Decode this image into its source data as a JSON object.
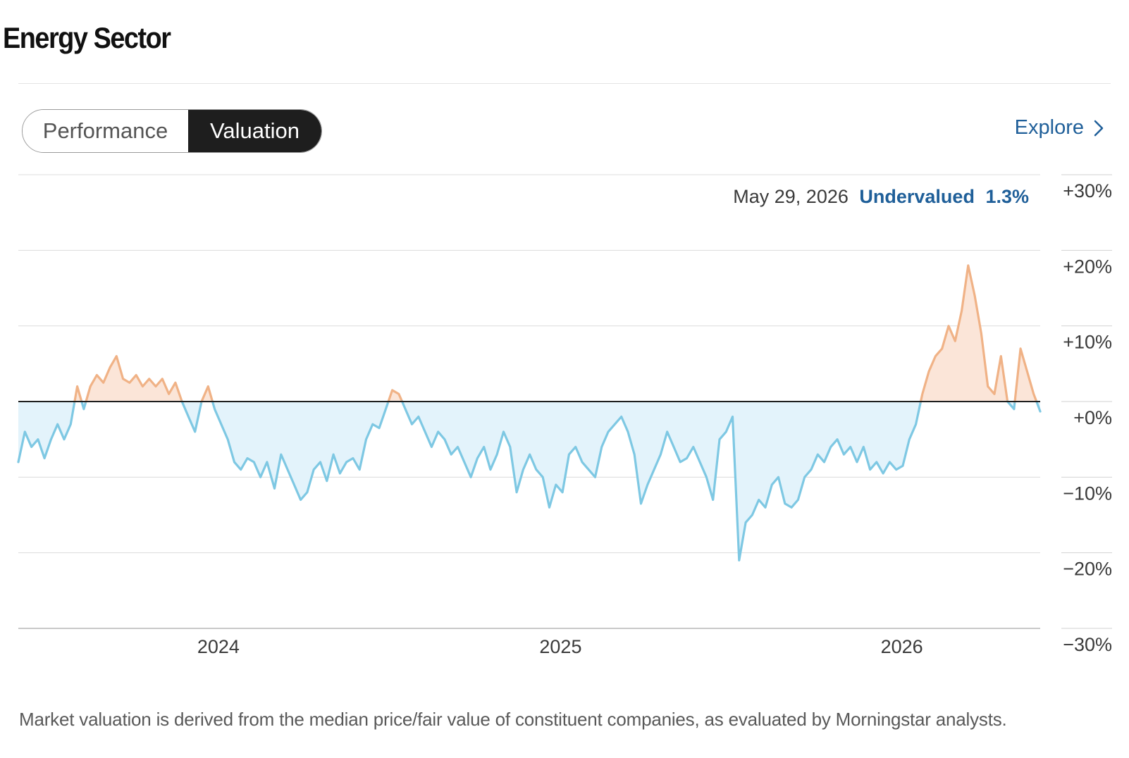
{
  "page": {
    "title": "Energy Sector",
    "tabs": [
      {
        "label": "Performance",
        "active": false
      },
      {
        "label": "Valuation",
        "active": true
      }
    ],
    "explore_label": "Explore",
    "footnote": "Market valuation is derived from the median price/fair value of constituent companies, as evaluated by Morningstar analysts.",
    "colors": {
      "accent": "#1f5f99",
      "undervalued_line": "#7ec8e3",
      "undervalued_fill": "#e3f3fb",
      "overvalued_line": "#f0b286",
      "overvalued_fill": "#fbe5d8",
      "toggle_active_bg": "#1e1e1e"
    }
  },
  "chart_data": {
    "type": "area",
    "y_tick_labels": [
      "+30%",
      "+20%",
      "+10%",
      "+0%",
      "−10%",
      "−20%",
      "−30%"
    ],
    "y_ticks": [
      30,
      20,
      10,
      0,
      -10,
      -20,
      -30
    ],
    "ylim": [
      -30,
      30
    ],
    "x_tick_labels": [
      "2024",
      "2025",
      "2026"
    ],
    "x_tick_dates": [
      "2024-01-01",
      "2025-01-01",
      "2026-01-01"
    ],
    "xlim": [
      "2023-06-01",
      "2026-05-29"
    ],
    "grid": true,
    "baseline": 0,
    "annotation": {
      "date_label": "May 29, 2026",
      "status_label": "Undervalued",
      "value_label": "1.3%"
    },
    "series": [
      {
        "values": [
          [
            "2023-06-01",
            -8
          ],
          [
            "2023-06-08",
            -4
          ],
          [
            "2023-06-15",
            -6
          ],
          [
            "2023-06-22",
            -5
          ],
          [
            "2023-06-29",
            -7.5
          ],
          [
            "2023-07-06",
            -5
          ],
          [
            "2023-07-13",
            -3
          ],
          [
            "2023-07-20",
            -5
          ],
          [
            "2023-07-27",
            -3
          ],
          [
            "2023-08-03",
            2
          ],
          [
            "2023-08-10",
            -1
          ],
          [
            "2023-08-17",
            2
          ],
          [
            "2023-08-24",
            3.5
          ],
          [
            "2023-08-31",
            2.5
          ],
          [
            "2023-09-07",
            4.5
          ],
          [
            "2023-09-14",
            6
          ],
          [
            "2023-09-21",
            3
          ],
          [
            "2023-09-28",
            2.5
          ],
          [
            "2023-10-05",
            3.5
          ],
          [
            "2023-10-12",
            2
          ],
          [
            "2023-10-19",
            3
          ],
          [
            "2023-10-26",
            2
          ],
          [
            "2023-11-02",
            3
          ],
          [
            "2023-11-09",
            1
          ],
          [
            "2023-11-16",
            2.5
          ],
          [
            "2023-11-23",
            0
          ],
          [
            "2023-11-30",
            -2
          ],
          [
            "2023-12-07",
            -4
          ],
          [
            "2023-12-14",
            0
          ],
          [
            "2023-12-21",
            2
          ],
          [
            "2023-12-28",
            -1
          ],
          [
            "2024-01-04",
            -3
          ],
          [
            "2024-01-11",
            -5
          ],
          [
            "2024-01-18",
            -8
          ],
          [
            "2024-01-25",
            -9
          ],
          [
            "2024-02-01",
            -7.5
          ],
          [
            "2024-02-08",
            -8
          ],
          [
            "2024-02-15",
            -10
          ],
          [
            "2024-02-22",
            -8
          ],
          [
            "2024-03-01",
            -11.5
          ],
          [
            "2024-03-08",
            -7
          ],
          [
            "2024-03-15",
            -9
          ],
          [
            "2024-03-22",
            -11
          ],
          [
            "2024-03-29",
            -13
          ],
          [
            "2024-04-05",
            -12
          ],
          [
            "2024-04-12",
            -9
          ],
          [
            "2024-04-19",
            -8
          ],
          [
            "2024-04-26",
            -10.5
          ],
          [
            "2024-05-03",
            -7
          ],
          [
            "2024-05-10",
            -9.5
          ],
          [
            "2024-05-17",
            -8
          ],
          [
            "2024-05-24",
            -7.5
          ],
          [
            "2024-05-31",
            -9
          ],
          [
            "2024-06-07",
            -5
          ],
          [
            "2024-06-14",
            -3
          ],
          [
            "2024-06-21",
            -3.5
          ],
          [
            "2024-06-28",
            -1
          ],
          [
            "2024-07-05",
            1.5
          ],
          [
            "2024-07-12",
            1
          ],
          [
            "2024-07-19",
            -1
          ],
          [
            "2024-07-26",
            -3
          ],
          [
            "2024-08-02",
            -2
          ],
          [
            "2024-08-09",
            -4
          ],
          [
            "2024-08-16",
            -6
          ],
          [
            "2024-08-23",
            -4
          ],
          [
            "2024-08-30",
            -5
          ],
          [
            "2024-09-06",
            -7
          ],
          [
            "2024-09-13",
            -6
          ],
          [
            "2024-09-20",
            -8
          ],
          [
            "2024-09-27",
            -10
          ],
          [
            "2024-10-04",
            -7.5
          ],
          [
            "2024-10-11",
            -6
          ],
          [
            "2024-10-18",
            -9
          ],
          [
            "2024-10-25",
            -7
          ],
          [
            "2024-11-01",
            -4
          ],
          [
            "2024-11-08",
            -6
          ],
          [
            "2024-11-15",
            -12
          ],
          [
            "2024-11-22",
            -9
          ],
          [
            "2024-11-29",
            -7
          ],
          [
            "2024-12-06",
            -9
          ],
          [
            "2024-12-13",
            -10
          ],
          [
            "2024-12-20",
            -14
          ],
          [
            "2024-12-27",
            -11
          ],
          [
            "2025-01-03",
            -12
          ],
          [
            "2025-01-10",
            -7
          ],
          [
            "2025-01-17",
            -6
          ],
          [
            "2025-01-24",
            -8
          ],
          [
            "2025-01-31",
            -9
          ],
          [
            "2025-02-07",
            -10
          ],
          [
            "2025-02-14",
            -6
          ],
          [
            "2025-02-21",
            -4
          ],
          [
            "2025-02-28",
            -3
          ],
          [
            "2025-03-07",
            -2
          ],
          [
            "2025-03-14",
            -4
          ],
          [
            "2025-03-21",
            -7
          ],
          [
            "2025-03-28",
            -13.5
          ],
          [
            "2025-04-04",
            -11
          ],
          [
            "2025-04-11",
            -9
          ],
          [
            "2025-04-18",
            -7
          ],
          [
            "2025-04-25",
            -4
          ],
          [
            "2025-05-02",
            -6
          ],
          [
            "2025-05-09",
            -8
          ],
          [
            "2025-05-16",
            -7.5
          ],
          [
            "2025-05-23",
            -6
          ],
          [
            "2025-05-30",
            -8
          ],
          [
            "2025-06-06",
            -10
          ],
          [
            "2025-06-13",
            -13
          ],
          [
            "2025-06-20",
            -5
          ],
          [
            "2025-06-27",
            -4
          ],
          [
            "2025-07-04",
            -2
          ],
          [
            "2025-07-11",
            -21
          ],
          [
            "2025-07-18",
            -16
          ],
          [
            "2025-07-25",
            -15
          ],
          [
            "2025-08-01",
            -13
          ],
          [
            "2025-08-08",
            -14
          ],
          [
            "2025-08-15",
            -11
          ],
          [
            "2025-08-22",
            -10
          ],
          [
            "2025-08-29",
            -13.5
          ],
          [
            "2025-09-05",
            -14
          ],
          [
            "2025-09-12",
            -13
          ],
          [
            "2025-09-19",
            -10
          ],
          [
            "2025-09-26",
            -9
          ],
          [
            "2025-10-03",
            -7
          ],
          [
            "2025-10-10",
            -8
          ],
          [
            "2025-10-17",
            -6
          ],
          [
            "2025-10-24",
            -5
          ],
          [
            "2025-10-31",
            -7
          ],
          [
            "2025-11-07",
            -6
          ],
          [
            "2025-11-14",
            -8
          ],
          [
            "2025-11-21",
            -6
          ],
          [
            "2025-11-28",
            -9
          ],
          [
            "2025-12-05",
            -8
          ],
          [
            "2025-12-12",
            -9.5
          ],
          [
            "2025-12-19",
            -8
          ],
          [
            "2025-12-26",
            -9
          ],
          [
            "2026-01-02",
            -8.5
          ],
          [
            "2026-01-09",
            -5
          ],
          [
            "2026-01-16",
            -3
          ],
          [
            "2026-01-23",
            1
          ],
          [
            "2026-01-30",
            4
          ],
          [
            "2026-02-06",
            6
          ],
          [
            "2026-02-13",
            7
          ],
          [
            "2026-02-20",
            10
          ],
          [
            "2026-02-27",
            8
          ],
          [
            "2026-03-06",
            12
          ],
          [
            "2026-03-13",
            18
          ],
          [
            "2026-03-20",
            14
          ],
          [
            "2026-03-27",
            9
          ],
          [
            "2026-04-03",
            2
          ],
          [
            "2026-04-10",
            1
          ],
          [
            "2026-04-17",
            6
          ],
          [
            "2026-04-24",
            0
          ],
          [
            "2026-05-01",
            -1
          ],
          [
            "2026-05-08",
            7
          ],
          [
            "2026-05-15",
            4
          ],
          [
            "2026-05-22",
            1
          ],
          [
            "2026-05-29",
            -1.3
          ]
        ]
      }
    ]
  }
}
